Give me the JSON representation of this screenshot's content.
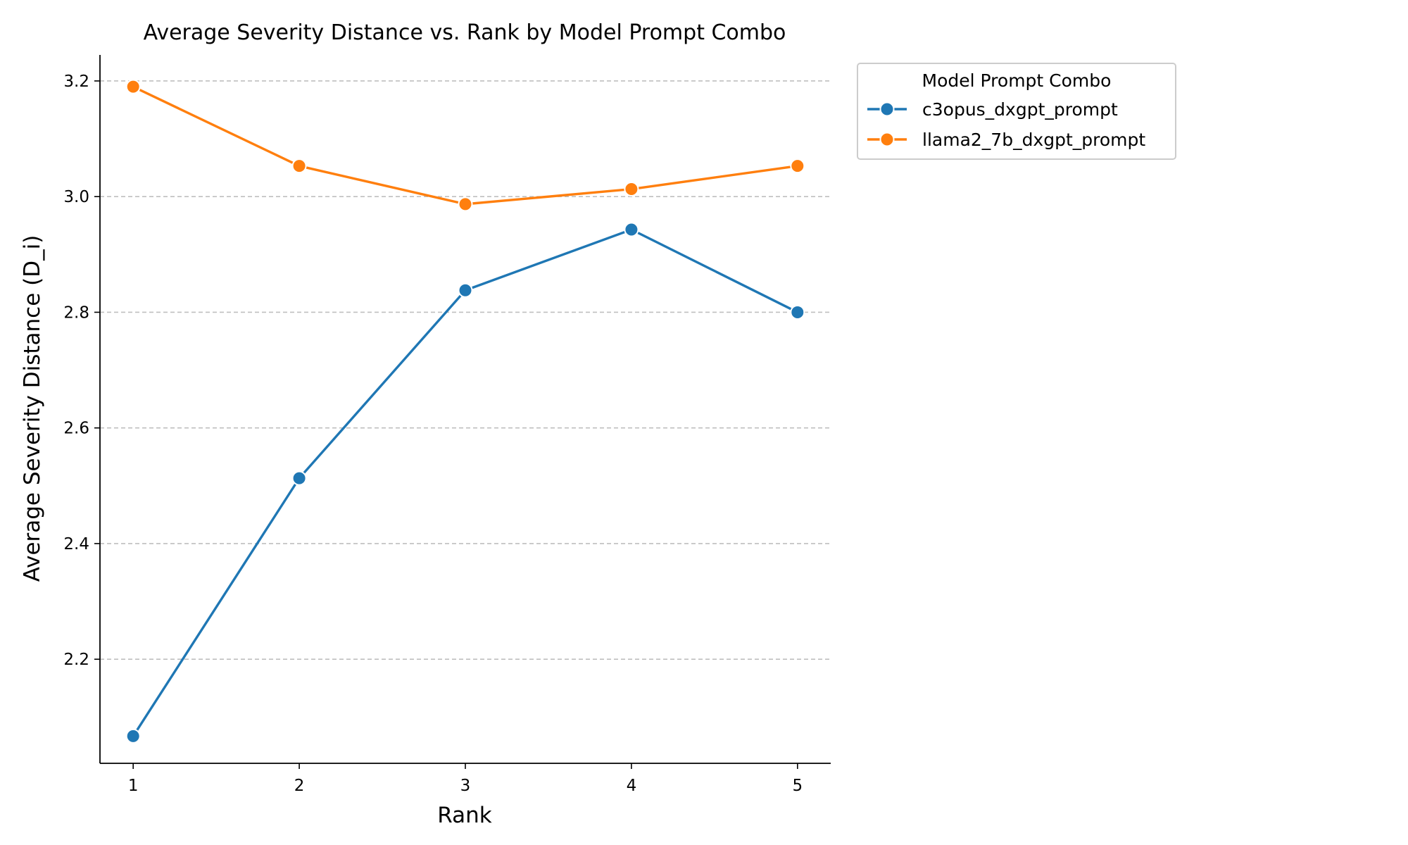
{
  "chart_data": {
    "type": "line",
    "title": "Average Severity Distance vs. Rank by Model Prompt Combo",
    "xlabel": "Rank",
    "ylabel": "Average Severity Distance (D_i)",
    "x": [
      1,
      2,
      3,
      4,
      5
    ],
    "x_tick_labels": [
      "1",
      "2",
      "3",
      "4",
      "5"
    ],
    "xlim": [
      0.8,
      5.2
    ],
    "ylim": [
      2.02,
      3.245
    ],
    "y_ticks": [
      2.2,
      2.4,
      2.6,
      2.8,
      3.0,
      3.2
    ],
    "y_tick_labels": [
      "2.2",
      "2.4",
      "2.6",
      "2.8",
      "3.0",
      "3.2"
    ],
    "grid": "y-dashed",
    "legend": {
      "title": "Model Prompt Combo",
      "placement": "outside upper right"
    },
    "series": [
      {
        "name": "c3opus_dxgpt_prompt",
        "color": "#1f77b4",
        "values": [
          2.067,
          2.513,
          2.838,
          2.943,
          2.8
        ]
      },
      {
        "name": "llama2_7b_dxgpt_prompt",
        "color": "#ff7f0e",
        "values": [
          3.19,
          3.053,
          2.987,
          3.013,
          3.053
        ]
      }
    ]
  }
}
